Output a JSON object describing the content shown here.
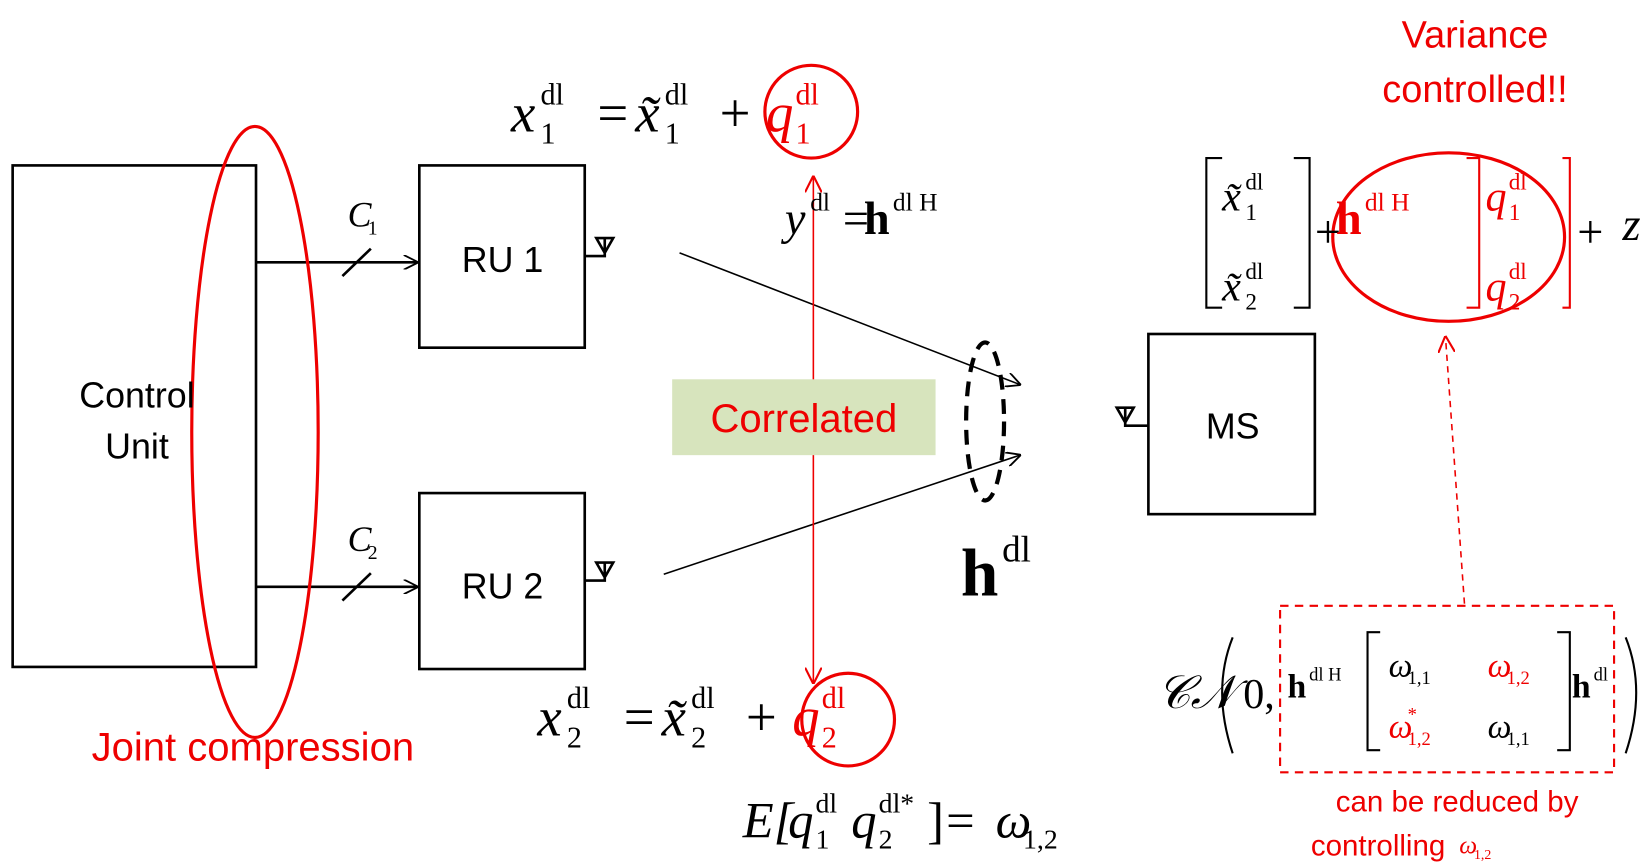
{
  "control_unit": [
    "Control",
    "Unit"
  ],
  "ru1": "RU 1",
  "ru2": "RU 2",
  "ms": "MS",
  "links": [
    {
      "base": "C",
      "sub": "1"
    },
    {
      "base": "C",
      "sub": "2"
    }
  ],
  "joint_compression": "Joint compression",
  "correlated": "Correlated",
  "variance": [
    "Variance",
    "controlled!!"
  ],
  "channel": {
    "base": "h",
    "sup": "dl"
  },
  "eq_x1": {
    "lhs": {
      "base": "x",
      "sub": "1",
      "sup": "dl"
    },
    "eq": "=",
    "t1": {
      "base": "x̃",
      "sub": "1",
      "sup": "dl"
    },
    "plus": "+",
    "t2": {
      "base": "q",
      "sub": "1",
      "sup": "dl"
    }
  },
  "eq_x2": {
    "lhs": {
      "base": "x",
      "sub": "2",
      "sup": "dl"
    },
    "eq": "=",
    "t1": {
      "base": "x̃",
      "sub": "2",
      "sup": "dl"
    },
    "plus": "+",
    "t2": {
      "base": "q",
      "sub": "2",
      "sup": "dl"
    }
  },
  "eq_corr": {
    "open": "E[",
    "a": {
      "base": "q",
      "sub": "1",
      "sup": "dl"
    },
    "b": {
      "base": "q",
      "sub": "2",
      "sup": "dl*"
    },
    "close": "]",
    "eq": "=",
    "rhs": {
      "base": "ω",
      "sub": "1,2"
    }
  },
  "eq_y": {
    "lhs": {
      "base": "y",
      "sup": "dl"
    },
    "eq": "=",
    "h1": {
      "base": "h",
      "sup": "dl H"
    },
    "m1": [
      {
        "base": "x̃",
        "sub": "1",
        "sup": "dl"
      },
      {
        "base": "x̃",
        "sub": "2",
        "sup": "dl"
      }
    ],
    "plus1": "+",
    "h2": {
      "base": "h",
      "sup": "dl H"
    },
    "m2": [
      {
        "base": "q",
        "sub": "1",
        "sup": "dl"
      },
      {
        "base": "q",
        "sub": "2",
        "sup": "dl"
      }
    ],
    "plus2": "+",
    "z": "z"
  },
  "eq_cov": {
    "cn": "𝒞𝒩",
    "open": "(",
    "zero": "0,",
    "h1": {
      "base": "h",
      "sup": "dl H"
    },
    "m": [
      {
        "base": "ω",
        "sub": "1,1"
      },
      {
        "base": "ω",
        "sub": "1,2"
      },
      {
        "base": "ω",
        "sub": "1,2",
        "sup": "*"
      },
      {
        "base": "ω",
        "sub": "1,1"
      }
    ],
    "h2": {
      "base": "h",
      "sup": "dl"
    },
    "close": ")"
  },
  "note": {
    "line1": "can be reduced by",
    "line2": "controlling",
    "sym": {
      "base": "ω",
      "sub": "1,2"
    }
  }
}
